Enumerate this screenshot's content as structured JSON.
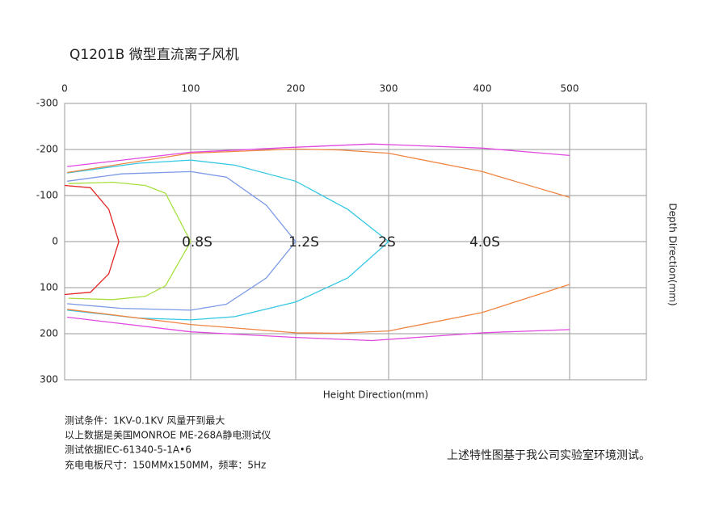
{
  "chart_data": {
    "type": "line",
    "title": "Q1201B 微型直流离子风机",
    "x_label": "Height Direction(mm)",
    "y_label": "Depth Direction(mm)",
    "xlim": [
      0,
      585
    ],
    "xticks": [
      0,
      100,
      200,
      300,
      400,
      500
    ],
    "ylim": [
      -300,
      300
    ],
    "yticks": [
      -300,
      -200,
      -100,
      0,
      100,
      200,
      300
    ],
    "grid": true,
    "series": [
      {
        "color": "#e02828",
        "x": [
          0,
          20.5,
          35,
          43,
          35,
          20.5,
          0
        ],
        "values": [
          -122,
          -117,
          -70,
          0,
          70,
          110,
          115
        ]
      },
      {
        "color": "#a6e040",
        "x": [
          3,
          38,
          64,
          80,
          100,
          80,
          64,
          38,
          3
        ],
        "values": [
          -126,
          -129,
          -122,
          -105,
          0,
          96,
          119,
          126,
          123
        ]
      },
      {
        "color": "#7b9ae6",
        "x": [
          2,
          45,
          100,
          134,
          172,
          200,
          172,
          134,
          100,
          45,
          2
        ],
        "values": [
          -131,
          -147,
          -152,
          -140,
          -79,
          0,
          79,
          136,
          149,
          145,
          135
        ]
      },
      {
        "color": "#35c8e4",
        "x": [
          2,
          58,
          100,
          142,
          200,
          256,
          300,
          256,
          200,
          142,
          100,
          58,
          2
        ],
        "values": [
          -149,
          -170,
          -177,
          -166,
          -131,
          -70,
          0,
          79,
          131,
          163,
          170,
          166,
          149
        ]
      },
      {
        "color": "#f08440",
        "x": [
          2,
          100,
          200,
          247,
          300,
          400,
          500
        ],
        "values": [
          -150,
          -192,
          -201,
          -199,
          -192,
          -152,
          -96
        ]
      },
      {
        "color": "#f08440",
        "x": [
          2,
          100,
          200,
          247,
          300,
          400,
          500
        ],
        "values": [
          147,
          180,
          198,
          199,
          194,
          154,
          93
        ]
      },
      {
        "color": "#e048e0",
        "x": [
          2,
          100,
          200,
          282,
          400,
          500
        ],
        "values": [
          -163,
          -194,
          -205,
          -212,
          -203,
          -187
        ]
      },
      {
        "color": "#e048e0",
        "x": [
          2,
          100,
          200,
          282,
          400,
          500
        ],
        "values": [
          164,
          196,
          208,
          215,
          198,
          191
        ]
      }
    ],
    "zone_labels": [
      "0.8S",
      "1.2S",
      "2S",
      "4.0S"
    ],
    "notes": [
      "测试条件：1KV-0.1KV  风量开到最大",
      "以上数据是美国MONROE ME-268A静电测试仪",
      "测试依据IEC-61340-5-1A•6",
      "充电电板尺寸：150MMx150MM，频率：5Hz"
    ],
    "footnote": "上述特性图基于我公司实验室环境测试。"
  }
}
